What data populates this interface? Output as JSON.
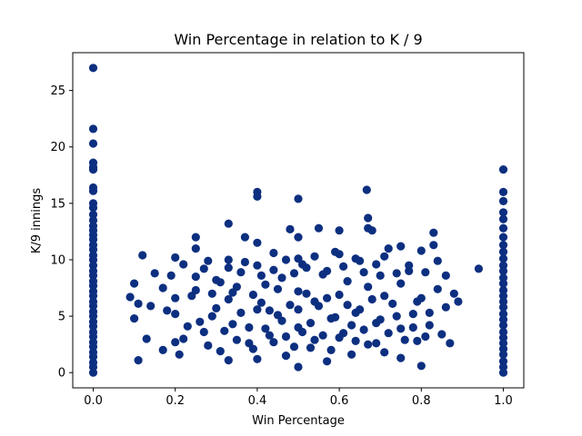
{
  "chart_data": {
    "type": "scatter",
    "title": "Win Percentage in relation to K / 9",
    "xlabel": "Win Percentage",
    "ylabel": "K/9 innings",
    "xlim": [
      -0.05,
      1.05
    ],
    "ylim": [
      -1.35,
      28.35
    ],
    "xticks": [
      {
        "value": 0.0,
        "label": "0.0"
      },
      {
        "value": 0.2,
        "label": "0.2"
      },
      {
        "value": 0.4,
        "label": "0.4"
      },
      {
        "value": 0.6,
        "label": "0.6"
      },
      {
        "value": 0.8,
        "label": "0.8"
      },
      {
        "value": 1.0,
        "label": "1.0"
      }
    ],
    "yticks": [
      {
        "value": 0,
        "label": "0"
      },
      {
        "value": 5,
        "label": "5"
      },
      {
        "value": 10,
        "label": "10"
      },
      {
        "value": 15,
        "label": "15"
      },
      {
        "value": 20,
        "label": "20"
      },
      {
        "value": 25,
        "label": "25"
      }
    ],
    "grid": false,
    "legend": "none",
    "marker_color": "#0d2f80",
    "series": [
      {
        "points": [
          [
            0.0,
            27.0
          ],
          [
            0.0,
            21.6
          ],
          [
            0.0,
            20.3
          ],
          [
            0.0,
            18.6
          ],
          [
            0.0,
            18.2
          ],
          [
            0.0,
            18.0
          ],
          [
            0.0,
            16.4
          ],
          [
            0.0,
            16.1
          ],
          [
            0.0,
            15.0
          ],
          [
            0.0,
            14.6
          ],
          [
            0.0,
            14.0
          ],
          [
            0.0,
            13.5
          ],
          [
            0.0,
            13.0
          ],
          [
            0.0,
            12.6
          ],
          [
            0.0,
            12.2
          ],
          [
            0.0,
            11.8
          ],
          [
            0.0,
            11.3
          ],
          [
            0.0,
            10.9
          ],
          [
            0.0,
            10.4
          ],
          [
            0.0,
            10.0
          ],
          [
            0.0,
            9.5
          ],
          [
            0.0,
            9.0
          ],
          [
            0.0,
            8.6
          ],
          [
            0.0,
            8.1
          ],
          [
            0.0,
            7.7
          ],
          [
            0.0,
            7.2
          ],
          [
            0.0,
            6.8
          ],
          [
            0.0,
            6.3
          ],
          [
            0.0,
            5.9
          ],
          [
            0.0,
            5.4
          ],
          [
            0.0,
            5.0
          ],
          [
            0.0,
            4.5
          ],
          [
            0.0,
            4.1
          ],
          [
            0.0,
            3.6
          ],
          [
            0.0,
            3.2
          ],
          [
            0.0,
            2.7
          ],
          [
            0.0,
            2.3
          ],
          [
            0.0,
            1.8
          ],
          [
            0.0,
            1.4
          ],
          [
            0.0,
            0.9
          ],
          [
            0.0,
            0.5
          ],
          [
            0.0,
            0.0
          ],
          [
            1.0,
            18.0
          ],
          [
            1.0,
            16.0
          ],
          [
            1.0,
            15.2
          ],
          [
            1.0,
            14.2
          ],
          [
            1.0,
            13.6
          ],
          [
            1.0,
            12.8
          ],
          [
            1.0,
            12.0
          ],
          [
            1.0,
            11.3
          ],
          [
            1.0,
            10.7
          ],
          [
            1.0,
            10.1
          ],
          [
            1.0,
            9.5
          ],
          [
            1.0,
            9.0
          ],
          [
            1.0,
            8.4
          ],
          [
            1.0,
            7.9
          ],
          [
            1.0,
            7.3
          ],
          [
            1.0,
            6.8
          ],
          [
            1.0,
            6.3
          ],
          [
            1.0,
            5.8
          ],
          [
            1.0,
            5.2
          ],
          [
            1.0,
            4.7
          ],
          [
            1.0,
            4.2
          ],
          [
            1.0,
            3.6
          ],
          [
            1.0,
            3.1
          ],
          [
            1.0,
            2.6
          ],
          [
            1.0,
            2.1
          ],
          [
            1.0,
            1.6
          ],
          [
            1.0,
            1.0
          ],
          [
            1.0,
            0.5
          ],
          [
            1.0,
            0.0
          ],
          [
            0.94,
            9.2
          ],
          [
            0.11,
            1.1
          ],
          [
            0.4,
            16.0
          ],
          [
            0.4,
            15.6
          ],
          [
            0.5,
            15.4
          ],
          [
            0.667,
            16.2
          ],
          [
            0.09,
            6.7
          ],
          [
            0.1,
            7.9
          ],
          [
            0.1,
            4.8
          ],
          [
            0.11,
            6.1
          ],
          [
            0.12,
            10.4
          ],
          [
            0.13,
            3.0
          ],
          [
            0.14,
            5.9
          ],
          [
            0.15,
            8.8
          ],
          [
            0.17,
            7.5
          ],
          [
            0.17,
            2.0
          ],
          [
            0.18,
            5.5
          ],
          [
            0.19,
            8.6
          ],
          [
            0.2,
            10.2
          ],
          [
            0.2,
            6.6
          ],
          [
            0.2,
            2.7
          ],
          [
            0.21,
            1.6
          ],
          [
            0.22,
            9.6
          ],
          [
            0.23,
            4.1
          ],
          [
            0.25,
            12.0
          ],
          [
            0.25,
            11.0
          ],
          [
            0.25,
            7.3
          ],
          [
            0.27,
            3.6
          ],
          [
            0.28,
            9.9
          ],
          [
            0.29,
            5.0
          ],
          [
            0.3,
            8.2
          ],
          [
            0.31,
            1.9
          ],
          [
            0.33,
            13.2
          ],
          [
            0.33,
            10.0
          ],
          [
            0.33,
            6.5
          ],
          [
            0.33,
            1.1
          ],
          [
            0.34,
            4.3
          ],
          [
            0.36,
            8.9
          ],
          [
            0.37,
            12.0
          ],
          [
            0.38,
            2.6
          ],
          [
            0.39,
            6.9
          ],
          [
            0.4,
            11.5
          ],
          [
            0.4,
            9.5
          ],
          [
            0.4,
            5.6
          ],
          [
            0.4,
            1.2
          ],
          [
            0.42,
            7.8
          ],
          [
            0.43,
            3.3
          ],
          [
            0.44,
            10.6
          ],
          [
            0.45,
            5.1
          ],
          [
            0.46,
            8.4
          ],
          [
            0.47,
            1.5
          ],
          [
            0.48,
            12.7
          ],
          [
            0.5,
            12.0
          ],
          [
            0.5,
            10.1
          ],
          [
            0.5,
            7.2
          ],
          [
            0.5,
            4.0
          ],
          [
            0.5,
            0.5
          ],
          [
            0.52,
            9.3
          ],
          [
            0.53,
            2.2
          ],
          [
            0.54,
            6.3
          ],
          [
            0.55,
            12.8
          ],
          [
            0.56,
            8.7
          ],
          [
            0.57,
            1.0
          ],
          [
            0.58,
            4.8
          ],
          [
            0.6,
            12.6
          ],
          [
            0.6,
            10.5
          ],
          [
            0.6,
            6.9
          ],
          [
            0.6,
            3.1
          ],
          [
            0.62,
            8.1
          ],
          [
            0.63,
            1.6
          ],
          [
            0.64,
            5.3
          ],
          [
            0.65,
            9.9
          ],
          [
            0.67,
            13.7
          ],
          [
            0.67,
            12.8
          ],
          [
            0.67,
            7.6
          ],
          [
            0.67,
            2.5
          ],
          [
            0.68,
            12.6
          ],
          [
            0.69,
            4.4
          ],
          [
            0.7,
            8.6
          ],
          [
            0.71,
            1.8
          ],
          [
            0.72,
            11.0
          ],
          [
            0.73,
            6.1
          ],
          [
            0.75,
            11.2
          ],
          [
            0.75,
            7.9
          ],
          [
            0.75,
            3.9
          ],
          [
            0.75,
            1.3
          ],
          [
            0.77,
            9.0
          ],
          [
            0.78,
            5.2
          ],
          [
            0.79,
            2.8
          ],
          [
            0.8,
            10.8
          ],
          [
            0.8,
            0.6
          ],
          [
            0.8,
            6.6
          ],
          [
            0.82,
            4.2
          ],
          [
            0.83,
            12.4
          ],
          [
            0.83,
            11.3
          ],
          [
            0.84,
            7.4
          ],
          [
            0.85,
            3.4
          ],
          [
            0.86,
            8.6
          ],
          [
            0.86,
            5.8
          ],
          [
            0.87,
            2.6
          ],
          [
            0.88,
            7.0
          ],
          [
            0.89,
            6.3
          ],
          [
            0.2,
            5.2
          ],
          [
            0.22,
            3.0
          ],
          [
            0.24,
            6.8
          ],
          [
            0.26,
            4.5
          ],
          [
            0.28,
            2.4
          ],
          [
            0.3,
            5.7
          ],
          [
            0.32,
            3.7
          ],
          [
            0.34,
            7.1
          ],
          [
            0.35,
            2.9
          ],
          [
            0.36,
            5.3
          ],
          [
            0.38,
            4.0
          ],
          [
            0.39,
            2.1
          ],
          [
            0.41,
            6.2
          ],
          [
            0.42,
            3.9
          ],
          [
            0.43,
            5.5
          ],
          [
            0.44,
            2.7
          ],
          [
            0.45,
            7.4
          ],
          [
            0.46,
            4.6
          ],
          [
            0.47,
            3.2
          ],
          [
            0.48,
            6.0
          ],
          [
            0.49,
            2.3
          ],
          [
            0.5,
            5.6
          ],
          [
            0.51,
            3.6
          ],
          [
            0.52,
            7.0
          ],
          [
            0.53,
            4.4
          ],
          [
            0.54,
            2.9
          ],
          [
            0.55,
            5.9
          ],
          [
            0.56,
            3.3
          ],
          [
            0.57,
            6.6
          ],
          [
            0.58,
            2.0
          ],
          [
            0.59,
            4.9
          ],
          [
            0.61,
            3.5
          ],
          [
            0.62,
            6.0
          ],
          [
            0.63,
            4.2
          ],
          [
            0.64,
            2.8
          ],
          [
            0.65,
            5.6
          ],
          [
            0.66,
            3.8
          ],
          [
            0.68,
            6.5
          ],
          [
            0.69,
            2.6
          ],
          [
            0.7,
            4.7
          ],
          [
            0.71,
            6.8
          ],
          [
            0.72,
            3.5
          ],
          [
            0.74,
            5.0
          ],
          [
            0.76,
            2.9
          ],
          [
            0.78,
            4.0
          ],
          [
            0.79,
            6.3
          ],
          [
            0.81,
            3.2
          ],
          [
            0.82,
            5.3
          ],
          [
            0.25,
            8.5
          ],
          [
            0.27,
            9.2
          ],
          [
            0.29,
            7.0
          ],
          [
            0.31,
            8.0
          ],
          [
            0.33,
            9.3
          ],
          [
            0.35,
            7.6
          ],
          [
            0.37,
            9.8
          ],
          [
            0.41,
            8.6
          ],
          [
            0.44,
            9.1
          ],
          [
            0.47,
            10.0
          ],
          [
            0.49,
            8.8
          ],
          [
            0.51,
            9.6
          ],
          [
            0.54,
            10.3
          ],
          [
            0.57,
            9.0
          ],
          [
            0.59,
            10.7
          ],
          [
            0.61,
            9.4
          ],
          [
            0.64,
            10.1
          ],
          [
            0.66,
            8.9
          ],
          [
            0.69,
            9.6
          ],
          [
            0.71,
            10.3
          ],
          [
            0.74,
            8.8
          ],
          [
            0.77,
            9.5
          ],
          [
            0.81,
            8.9
          ],
          [
            0.84,
            9.9
          ]
        ]
      }
    ]
  }
}
